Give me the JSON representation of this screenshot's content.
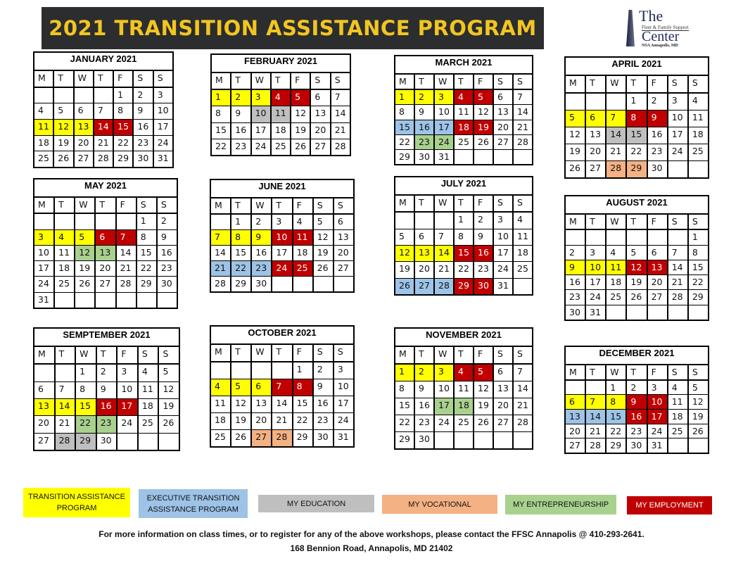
{
  "header": {
    "title": "2021 TRANSITION ASSISTANCE PROGRAM"
  },
  "logo": {
    "line1": "The",
    "line2": "Fleet & Family Support",
    "line3": "Center",
    "line4": "NSA Annapolis, MD"
  },
  "weekday_labels": [
    "M",
    "T",
    "W",
    "T",
    "F",
    "S",
    "S"
  ],
  "colors": {
    "tap": "#ffff00",
    "etap": "#9dc3e6",
    "edu": "#bfbfbf",
    "voc": "#f4b183",
    "ent": "#a9d18e",
    "emp": "#c00000",
    "title_bar": "#2b2d2f",
    "title_text": "#f2c521"
  },
  "months": [
    {
      "title": "JANUARY 2021",
      "first_weekday": 5,
      "days": 31,
      "highlights": {
        "tap": [
          11,
          12,
          13
        ],
        "emp": [
          14,
          15
        ]
      }
    },
    {
      "title": "FEBRUARY 2021",
      "first_weekday": 1,
      "days": 28,
      "highlights": {
        "tap": [
          1,
          2,
          3
        ],
        "emp": [
          4,
          5
        ],
        "edu": [
          10,
          11
        ]
      }
    },
    {
      "title": "MARCH 2021",
      "first_weekday": 1,
      "days": 31,
      "highlights": {
        "tap": [
          1,
          2,
          3
        ],
        "emp": [
          4,
          5,
          18,
          19
        ],
        "etap": [
          15,
          16,
          17
        ],
        "ent": [
          23,
          24
        ]
      }
    },
    {
      "title": "APRIL 2021",
      "first_weekday": 4,
      "days": 30,
      "highlights": {
        "tap": [
          5,
          6,
          7
        ],
        "emp": [
          8,
          9
        ],
        "edu": [
          14,
          15
        ],
        "voc": [
          28,
          29
        ]
      }
    },
    {
      "title": "MAY 2021",
      "first_weekday": 6,
      "days": 31,
      "highlights": {
        "tap": [
          3,
          4,
          5
        ],
        "emp": [
          6,
          7
        ],
        "ent": [
          12,
          13
        ]
      }
    },
    {
      "title": "JUNE 2021",
      "first_weekday": 2,
      "days": 30,
      "highlights": {
        "tap": [
          7,
          8,
          9
        ],
        "emp": [
          10,
          11,
          24,
          25
        ],
        "etap": [
          21,
          22,
          23
        ]
      }
    },
    {
      "title": "JULY 2021",
      "first_weekday": 4,
      "days": 31,
      "highlights": {
        "tap": [
          12,
          13,
          14
        ],
        "emp": [
          15,
          16,
          29,
          30
        ],
        "etap": [
          26,
          27,
          28
        ]
      }
    },
    {
      "title": "AUGUST 2021",
      "first_weekday": 7,
      "days": 31,
      "highlights": {
        "tap": [
          9,
          10,
          11
        ],
        "emp": [
          12,
          13
        ]
      }
    },
    {
      "title": "SEMPTEMBER 2021",
      "first_weekday": 3,
      "days": 30,
      "highlights": {
        "tap": [
          13,
          14,
          15
        ],
        "emp": [
          16,
          17
        ],
        "ent": [
          22,
          23
        ],
        "edu": [
          28,
          29
        ]
      }
    },
    {
      "title": "OCTOBER 2021",
      "first_weekday": 5,
      "days": 31,
      "highlights": {
        "tap": [
          4,
          5,
          6
        ],
        "emp": [
          7,
          8
        ],
        "voc": [
          27,
          28
        ]
      }
    },
    {
      "title": "NOVEMBER 2021",
      "first_weekday": 1,
      "days": 30,
      "highlights": {
        "tap": [
          1,
          2,
          3
        ],
        "emp": [
          4,
          5
        ],
        "ent": [
          17,
          18
        ]
      }
    },
    {
      "title": "DECEMBER 2021",
      "first_weekday": 3,
      "days": 31,
      "highlights": {
        "tap": [
          6,
          7,
          8
        ],
        "emp": [
          9,
          10,
          16,
          17
        ],
        "etap": [
          13,
          14,
          15
        ]
      }
    }
  ],
  "legend": [
    {
      "key": "tap",
      "label": "TRANSITION ASSISTANCE PROGRAM"
    },
    {
      "key": "etap",
      "label": "EXECUTIVE TRANSITION ASSISTANCE PROGRAM"
    },
    {
      "key": "edu",
      "label": "MY EDUCATION"
    },
    {
      "key": "voc",
      "label": "MY VOCATIONAL"
    },
    {
      "key": "ent",
      "label": "MY ENTREPRENEURSHIP"
    },
    {
      "key": "emp",
      "label": "MY EMPLOYMENT"
    }
  ],
  "footer": {
    "info": "For more information on class times, or to register for any of the above workshops, please contact the FFSC Annapolis @ 410-293-2641.",
    "address": "168 Bennion Road, Annapolis, MD 21402"
  }
}
